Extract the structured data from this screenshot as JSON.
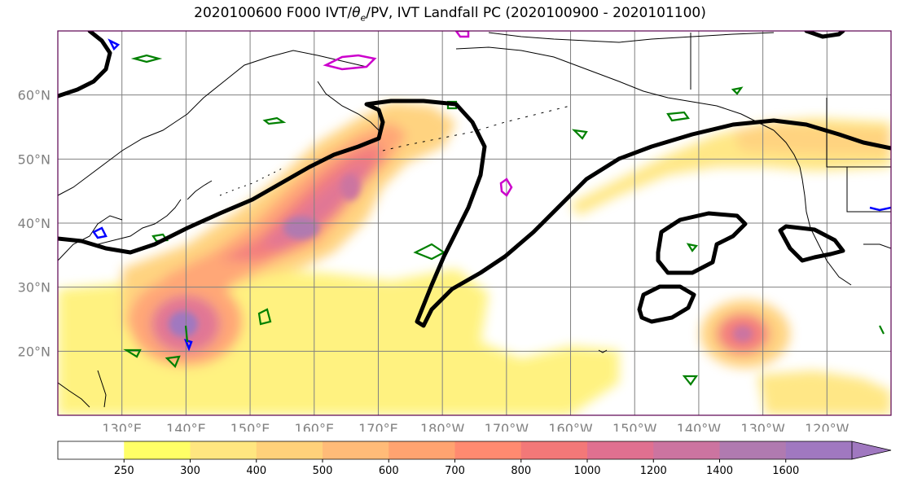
{
  "title_parts": {
    "prefix": "2020100600 F000 IVT/",
    "theta": "θ",
    "theta_sub": "e",
    "suffix": "/PV, IVT Landfall PC (2020100900 - 2020101100)"
  },
  "map": {
    "lat_labels": [
      "60°N",
      "50°N",
      "40°N",
      "30°N",
      "20°N"
    ],
    "lon_labels": [
      "130°E",
      "140°E",
      "150°E",
      "160°E",
      "170°E",
      "180°W",
      "170°W",
      "160°W",
      "150°W",
      "140°W",
      "130°W",
      "120°W"
    ],
    "lat_values": [
      60,
      50,
      40,
      30,
      20
    ],
    "lon_values": [
      130,
      140,
      150,
      160,
      170,
      180,
      190,
      200,
      210,
      220,
      230,
      240
    ],
    "extent": {
      "lon": [
        120,
        250
      ],
      "lat": [
        10,
        70
      ]
    },
    "colors": {
      "coastline": "#000000",
      "grid": "#808080",
      "pc_contour": "#000000",
      "theta_e_contour": "#008000",
      "pv_contour_blue": "#0000ff",
      "pv_contour_magenta": "#cc00cc"
    }
  },
  "colorbar": {
    "levels": [
      "250",
      "300",
      "400",
      "500",
      "600",
      "700",
      "800",
      "1000",
      "1200",
      "1400",
      "1600"
    ],
    "colors": [
      "#ffffff",
      "#ffff66",
      "#ffe680",
      "#ffd17a",
      "#ffbb78",
      "#ffa370",
      "#ff8a70",
      "#f37878",
      "#e07090",
      "#cc74a0",
      "#b07ab0",
      "#a078c0"
    ],
    "extend": "max"
  }
}
